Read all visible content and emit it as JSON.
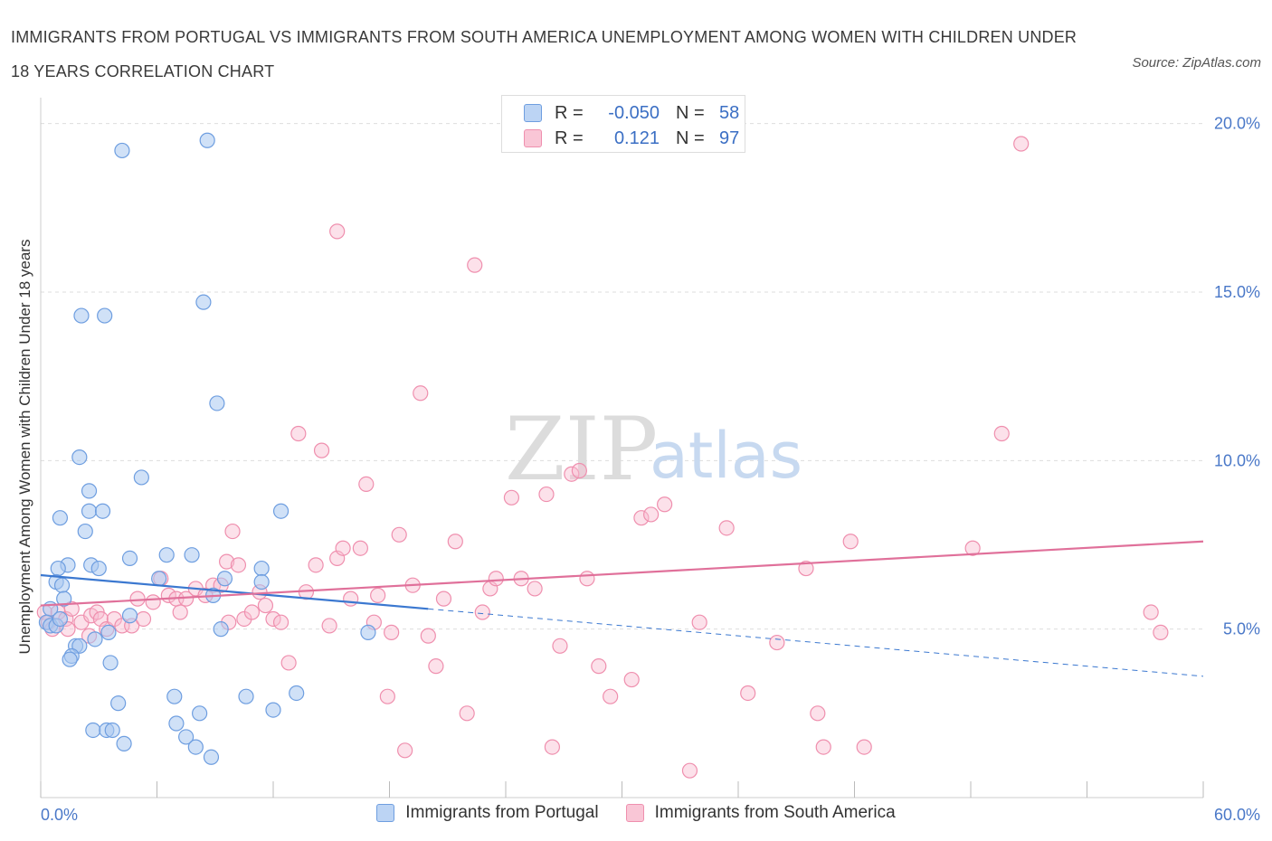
{
  "header": {
    "title": "IMMIGRANTS FROM PORTUGAL VS IMMIGRANTS FROM SOUTH AMERICA UNEMPLOYMENT AMONG WOMEN WITH CHILDREN UNDER 18 YEARS CORRELATION CHART",
    "source": "Source: ZipAtlas.com"
  },
  "stats": {
    "portugal": {
      "r_label": "R =",
      "r_value": "-0.050",
      "n_label": "N =",
      "n_value": "58"
    },
    "south_america": {
      "r_label": "R =",
      "r_value": "0.121",
      "n_label": "N =",
      "n_value": "97"
    }
  },
  "watermark": {
    "zip": "ZIP",
    "atlas": "atlas"
  },
  "colors": {
    "portugal_fill": "#aac8f0",
    "portugal_stroke": "#6e9ee0",
    "portugal_line": "#3b78d0",
    "sa_fill": "#f8bcd0",
    "sa_stroke": "#ef8fae",
    "sa_line": "#e0709a",
    "grid": "#dddddd",
    "tick_text": "#4a78c8"
  },
  "chart_data": {
    "type": "scatter",
    "title": "IMMIGRANTS FROM PORTUGAL VS IMMIGRANTS FROM SOUTH AMERICA UNEMPLOYMENT AMONG WOMEN WITH CHILDREN UNDER 18 YEARS CORRELATION CHART",
    "xlabel": "",
    "ylabel": "Unemployment Among Women with Children Under 18 years",
    "xlim": [
      0,
      60
    ],
    "ylim": [
      0,
      20.5
    ],
    "x_tick_labels": [
      "0.0%",
      "60.0%"
    ],
    "y_ticks": [
      5,
      10,
      15,
      20
    ],
    "y_tick_labels": [
      "5.0%",
      "10.0%",
      "15.0%",
      "20.0%"
    ],
    "grid": true,
    "legend_position": "bottom",
    "series": [
      {
        "name": "Immigrants from Portugal",
        "trend": {
          "x": [
            0,
            60
          ],
          "y": [
            6.6,
            3.6
          ],
          "solid_until": 20
        },
        "points": [
          [
            8.6,
            19.5
          ],
          [
            4.2,
            19.2
          ],
          [
            2.1,
            14.3
          ],
          [
            3.3,
            14.3
          ],
          [
            8.4,
            14.7
          ],
          [
            9.1,
            11.7
          ],
          [
            2.0,
            10.1
          ],
          [
            5.2,
            9.5
          ],
          [
            2.5,
            9.1
          ],
          [
            2.5,
            8.5
          ],
          [
            3.2,
            8.5
          ],
          [
            12.4,
            8.5
          ],
          [
            1.0,
            8.3
          ],
          [
            2.3,
            7.9
          ],
          [
            4.6,
            7.1
          ],
          [
            6.5,
            7.2
          ],
          [
            7.8,
            7.2
          ],
          [
            1.4,
            6.9
          ],
          [
            0.9,
            6.8
          ],
          [
            2.6,
            6.9
          ],
          [
            3.0,
            6.8
          ],
          [
            11.4,
            6.8
          ],
          [
            0.8,
            6.4
          ],
          [
            1.1,
            6.3
          ],
          [
            6.1,
            6.5
          ],
          [
            9.5,
            6.5
          ],
          [
            11.4,
            6.4
          ],
          [
            8.9,
            6.0
          ],
          [
            1.2,
            5.9
          ],
          [
            0.5,
            5.6
          ],
          [
            0.3,
            5.2
          ],
          [
            0.5,
            5.1
          ],
          [
            0.8,
            5.1
          ],
          [
            1.0,
            5.3
          ],
          [
            4.6,
            5.4
          ],
          [
            9.3,
            5.0
          ],
          [
            16.9,
            4.9
          ],
          [
            3.5,
            4.9
          ],
          [
            2.8,
            4.7
          ],
          [
            1.8,
            4.5
          ],
          [
            2.0,
            4.5
          ],
          [
            1.6,
            4.2
          ],
          [
            1.5,
            4.1
          ],
          [
            3.6,
            4.0
          ],
          [
            6.9,
            3.0
          ],
          [
            10.6,
            3.0
          ],
          [
            13.2,
            3.1
          ],
          [
            4.0,
            2.8
          ],
          [
            8.2,
            2.5
          ],
          [
            12.0,
            2.6
          ],
          [
            7.0,
            2.2
          ],
          [
            2.7,
            2.0
          ],
          [
            3.4,
            2.0
          ],
          [
            3.7,
            2.0
          ],
          [
            7.5,
            1.8
          ],
          [
            4.3,
            1.6
          ],
          [
            8.0,
            1.5
          ],
          [
            8.8,
            1.2
          ]
        ]
      },
      {
        "name": "Immigrants from South America",
        "trend": {
          "x": [
            0,
            60
          ],
          "y": [
            5.7,
            7.6
          ]
        },
        "points": [
          [
            0.2,
            5.5
          ],
          [
            0.4,
            5.2
          ],
          [
            0.6,
            5.0
          ],
          [
            0.9,
            5.5
          ],
          [
            1.3,
            5.3
          ],
          [
            1.6,
            5.6
          ],
          [
            2.1,
            5.2
          ],
          [
            2.6,
            5.4
          ],
          [
            2.9,
            5.5
          ],
          [
            3.1,
            5.3
          ],
          [
            3.4,
            5.0
          ],
          [
            3.8,
            5.3
          ],
          [
            4.2,
            5.1
          ],
          [
            4.7,
            5.1
          ],
          [
            5.3,
            5.3
          ],
          [
            5.8,
            5.8
          ],
          [
            6.2,
            6.5
          ],
          [
            6.6,
            6.0
          ],
          [
            7.0,
            5.9
          ],
          [
            7.5,
            5.9
          ],
          [
            8.0,
            6.2
          ],
          [
            8.5,
            6.0
          ],
          [
            8.9,
            6.3
          ],
          [
            9.3,
            6.3
          ],
          [
            9.6,
            7.0
          ],
          [
            9.9,
            7.9
          ],
          [
            10.2,
            6.9
          ],
          [
            10.5,
            5.3
          ],
          [
            10.9,
            5.5
          ],
          [
            11.3,
            6.1
          ],
          [
            11.6,
            5.7
          ],
          [
            12.0,
            5.3
          ],
          [
            12.4,
            5.2
          ],
          [
            12.8,
            4.0
          ],
          [
            13.3,
            10.8
          ],
          [
            13.7,
            6.1
          ],
          [
            14.2,
            6.9
          ],
          [
            14.5,
            10.3
          ],
          [
            14.9,
            5.1
          ],
          [
            15.3,
            7.1
          ],
          [
            15.6,
            7.4
          ],
          [
            15.3,
            16.8
          ],
          [
            16.0,
            5.9
          ],
          [
            16.5,
            7.4
          ],
          [
            16.8,
            9.3
          ],
          [
            17.2,
            5.2
          ],
          [
            17.4,
            6.0
          ],
          [
            17.9,
            3.0
          ],
          [
            18.1,
            4.9
          ],
          [
            18.5,
            7.8
          ],
          [
            18.8,
            1.4
          ],
          [
            19.2,
            6.3
          ],
          [
            19.6,
            12.0
          ],
          [
            20.0,
            4.8
          ],
          [
            20.4,
            3.9
          ],
          [
            20.8,
            5.9
          ],
          [
            21.4,
            7.6
          ],
          [
            22.0,
            2.5
          ],
          [
            22.4,
            15.8
          ],
          [
            22.8,
            5.5
          ],
          [
            23.2,
            6.2
          ],
          [
            23.5,
            6.5
          ],
          [
            24.3,
            8.9
          ],
          [
            24.8,
            6.5
          ],
          [
            25.5,
            6.2
          ],
          [
            26.1,
            9.0
          ],
          [
            26.4,
            1.5
          ],
          [
            26.8,
            4.5
          ],
          [
            27.4,
            9.6
          ],
          [
            27.8,
            9.7
          ],
          [
            28.2,
            6.5
          ],
          [
            28.8,
            3.9
          ],
          [
            29.4,
            3.0
          ],
          [
            30.5,
            3.5
          ],
          [
            31.0,
            8.3
          ],
          [
            31.5,
            8.4
          ],
          [
            32.2,
            8.7
          ],
          [
            33.5,
            0.8
          ],
          [
            34.0,
            5.2
          ],
          [
            35.4,
            8.0
          ],
          [
            36.5,
            3.1
          ],
          [
            38.0,
            4.6
          ],
          [
            39.5,
            6.8
          ],
          [
            40.1,
            2.5
          ],
          [
            40.4,
            1.5
          ],
          [
            41.8,
            7.6
          ],
          [
            42.5,
            1.5
          ],
          [
            48.1,
            7.4
          ],
          [
            50.6,
            19.4
          ],
          [
            57.3,
            5.5
          ],
          [
            57.8,
            4.9
          ],
          [
            1.4,
            5.0
          ],
          [
            2.5,
            4.8
          ],
          [
            5.0,
            5.9
          ],
          [
            7.2,
            5.5
          ],
          [
            9.7,
            5.2
          ],
          [
            49.6,
            10.8
          ]
        ]
      }
    ]
  }
}
